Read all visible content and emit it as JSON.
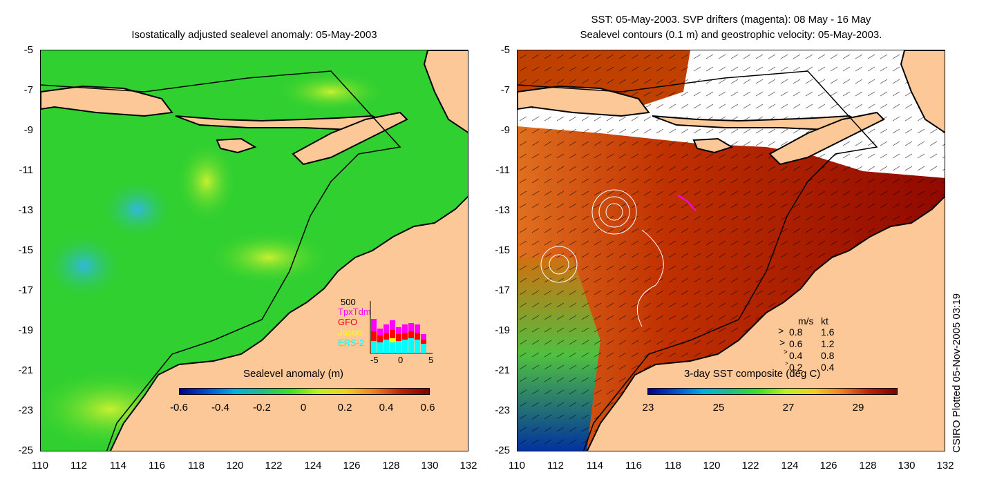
{
  "left_panel": {
    "title": "Isostatically adjusted sealevel anomaly: 05-May-2003",
    "colorbar_label": "Sealevel anomaly (m)",
    "colorbar_ticks": [
      "-0.6",
      "-0.4",
      "-0.2",
      "0",
      "0.2",
      "0.4",
      "0.6"
    ],
    "colorbar_colors": [
      "#00008b",
      "#0050d0",
      "#00b0e0",
      "#20c080",
      "#40e020",
      "#c0f020",
      "#f0d020",
      "#f08020",
      "#c02000",
      "#800000"
    ],
    "histogram": {
      "ymax_label": "500",
      "series": [
        "TpxTdm",
        "GFO",
        "Jason",
        "ERS-2"
      ],
      "series_colors": [
        "#ff00ff",
        "#ff0000",
        "#ffff00",
        "#00ffff"
      ],
      "x_ticks": [
        "-5",
        "0",
        "5"
      ]
    }
  },
  "right_panel": {
    "title_line1": "SST: 05-May-2003. SVP drifters (magenta): 08 May - 16 May",
    "title_line2": "Sealevel contours (0.1 m) and geostrophic velocity: 05-May-2003.",
    "colorbar_label": "3-day SST composite (deg C)",
    "colorbar_ticks": [
      "23",
      "25",
      "27",
      "29"
    ],
    "colorbar_colors": [
      "#00008b",
      "#0050d0",
      "#00b0e0",
      "#20c080",
      "#40e020",
      "#c0f020",
      "#f0d020",
      "#f08020",
      "#c02000",
      "#800000"
    ],
    "velocity_legend": {
      "header_ms": "m/s",
      "header_kt": "kt",
      "rows": [
        {
          "ms": "0.8",
          "kt": "1.6"
        },
        {
          "ms": "0.6",
          "kt": "1.2"
        },
        {
          "ms": "0.4",
          "kt": "0.8"
        },
        {
          "ms": "0.2",
          "kt": "0.4"
        }
      ]
    }
  },
  "axes": {
    "y_ticks": [
      "-5",
      "-7",
      "-9",
      "-11",
      "-13",
      "-15",
      "-17",
      "-19",
      "-21",
      "-23",
      "-25"
    ],
    "x_ticks": [
      "110",
      "112",
      "114",
      "116",
      "118",
      "120",
      "122",
      "124",
      "126",
      "128",
      "130",
      "132"
    ]
  },
  "stamp": "CSIRO Plotted 05-Nov-2005 03:19",
  "colors": {
    "land": "#fcc898",
    "ocean_left": "#30d030",
    "ocean_right_warm": "#b02000"
  }
}
